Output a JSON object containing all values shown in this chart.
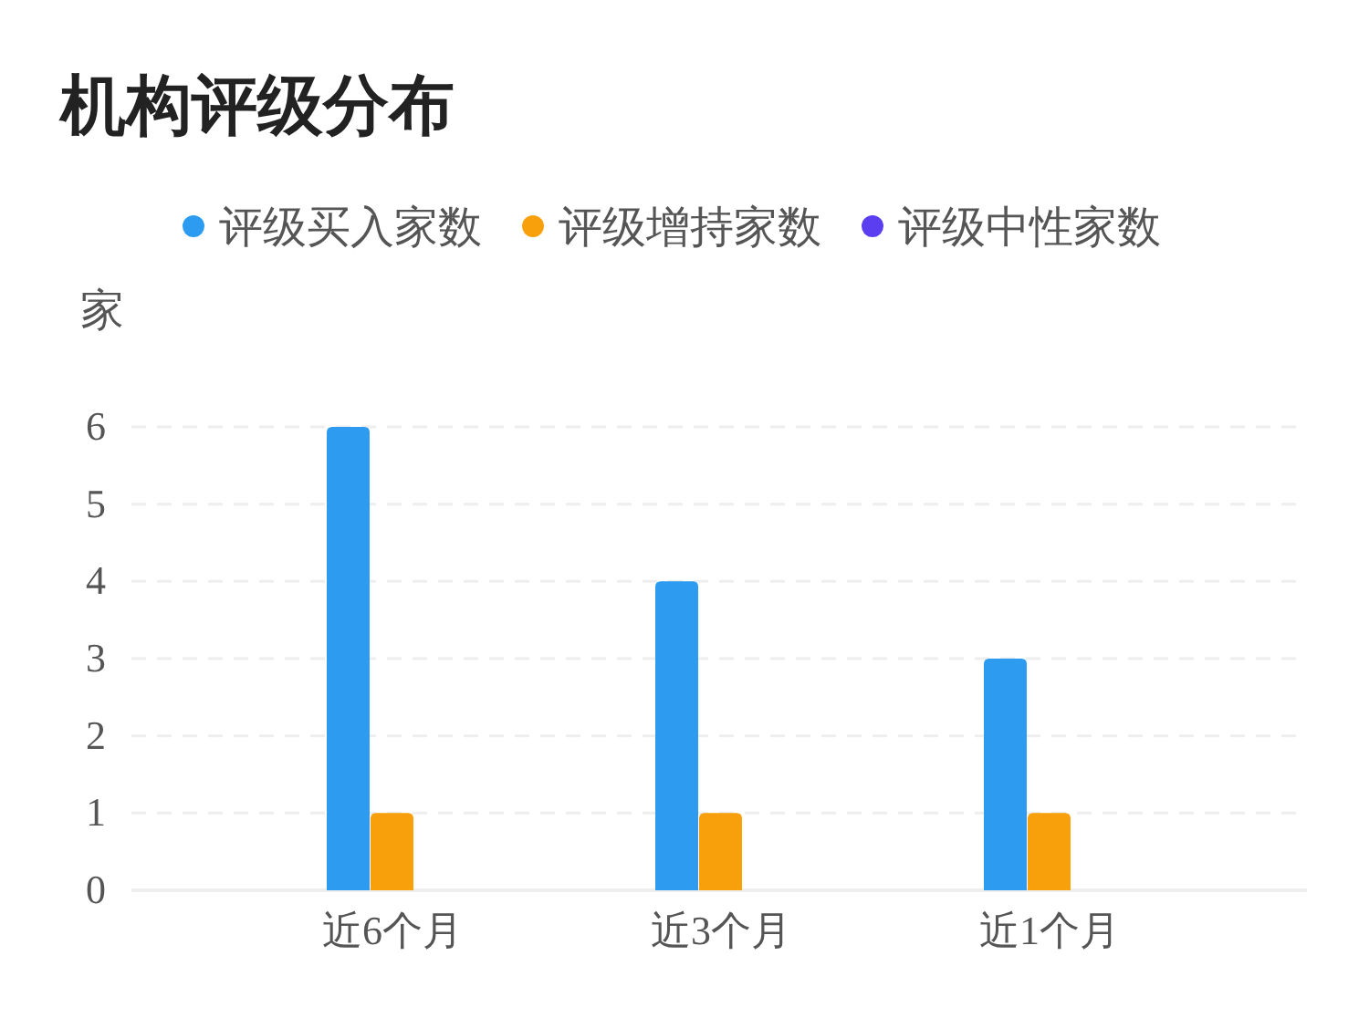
{
  "chart_data": {
    "type": "bar",
    "title": "机构评级分布",
    "ylabel": "家",
    "categories": [
      "近6个月",
      "近3个月",
      "近1个月"
    ],
    "series": [
      {
        "name": "评级买入家数",
        "color": "#2d9cf0",
        "values": [
          6,
          4,
          3
        ]
      },
      {
        "name": "评级增持家数",
        "color": "#f7a00c",
        "values": [
          1,
          1,
          1
        ]
      },
      {
        "name": "评级中性家数",
        "color": "#5a3ef0",
        "values": [
          0,
          0,
          0
        ]
      }
    ],
    "ylim": [
      0,
      6
    ],
    "yticks": [
      0,
      1,
      2,
      3,
      4,
      5,
      6
    ],
    "grid": "y",
    "legend": "top"
  }
}
